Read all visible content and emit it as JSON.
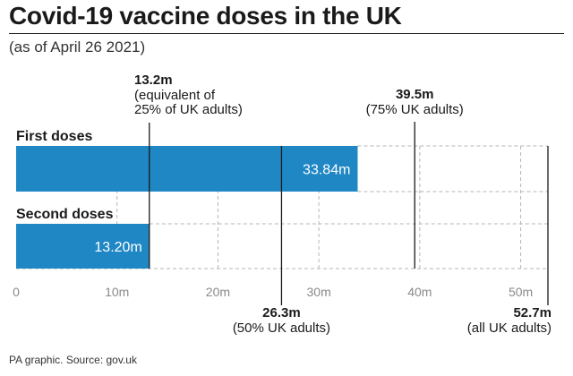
{
  "header": {
    "title": "Covid-19 vaccine doses in the UK",
    "subtitle": "(as of April 26 2021)"
  },
  "footer": {
    "source": "PA graphic. Source: gov.uk"
  },
  "colors": {
    "bar": "#1f87c4",
    "text": "#1a1a1a",
    "grid": "#b5b5b5",
    "tick": "#8a8a8a"
  },
  "chart_data": {
    "type": "bar",
    "orientation": "horizontal",
    "categories": [
      "First doses",
      "Second doses"
    ],
    "values": [
      33.84,
      13.2
    ],
    "value_labels": [
      "33.84m",
      "13.20m"
    ],
    "xlim": [
      0,
      52.7
    ],
    "x_ticks": [
      0,
      10,
      20,
      30,
      40,
      50
    ],
    "x_tick_labels": [
      "0",
      "10m",
      "20m",
      "30m",
      "40m",
      "50m"
    ],
    "grid": true,
    "reference_lines": [
      {
        "value": 13.2,
        "position": "top",
        "label": "13.2m",
        "note": [
          "(equivalent of",
          "25% of UK adults)"
        ]
      },
      {
        "value": 39.5,
        "position": "top",
        "label": "39.5m",
        "note": [
          "(75% UK adults)"
        ]
      },
      {
        "value": 26.3,
        "position": "bottom",
        "label": "26.3m",
        "note": [
          "(50% UK adults)"
        ]
      },
      {
        "value": 52.7,
        "position": "bottom",
        "label": "52.7m",
        "note": [
          "(all UK adults)"
        ]
      }
    ]
  }
}
